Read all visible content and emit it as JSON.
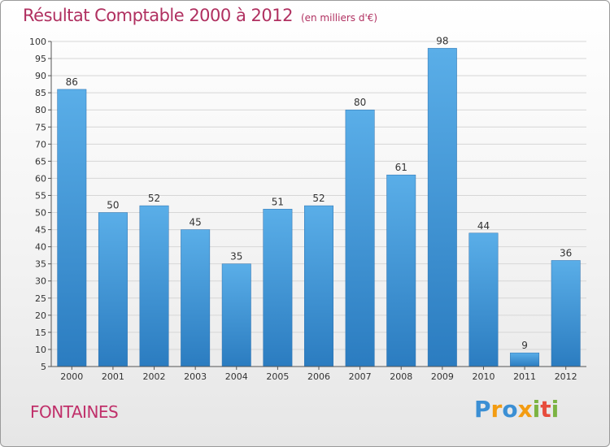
{
  "chart_data": {
    "type": "bar",
    "title": "Résultat Comptable 2000 à 2012",
    "subtitle": "(en milliers d'€)",
    "xlabel": "",
    "ylabel": "",
    "categories": [
      "2000",
      "2001",
      "2002",
      "2003",
      "2004",
      "2005",
      "2006",
      "2007",
      "2008",
      "2009",
      "2010",
      "2011",
      "2012"
    ],
    "values": [
      86,
      50,
      52,
      45,
      35,
      51,
      52,
      80,
      61,
      98,
      44,
      9,
      36
    ],
    "ylim": [
      5,
      100
    ],
    "yticks": [
      5,
      10,
      15,
      20,
      25,
      30,
      35,
      40,
      45,
      50,
      55,
      60,
      65,
      70,
      75,
      80,
      85,
      90,
      95,
      100
    ],
    "grid": true,
    "legend": "none",
    "bar_color": "#4a9de0",
    "bar_color_dark": "#2d7bbf"
  },
  "place_name": "FONTAINES",
  "logo": {
    "letters": [
      {
        "ch": "P",
        "color": "#3b8fd4"
      },
      {
        "ch": "r",
        "color": "#f39c12"
      },
      {
        "ch": "o",
        "color": "#3b8fd4"
      },
      {
        "ch": "x",
        "color": "#f39c12"
      },
      {
        "ch": "i",
        "color": "#7cb342"
      },
      {
        "ch": "t",
        "color": "#e74c3c"
      },
      {
        "ch": "i",
        "color": "#7cb342"
      }
    ]
  }
}
